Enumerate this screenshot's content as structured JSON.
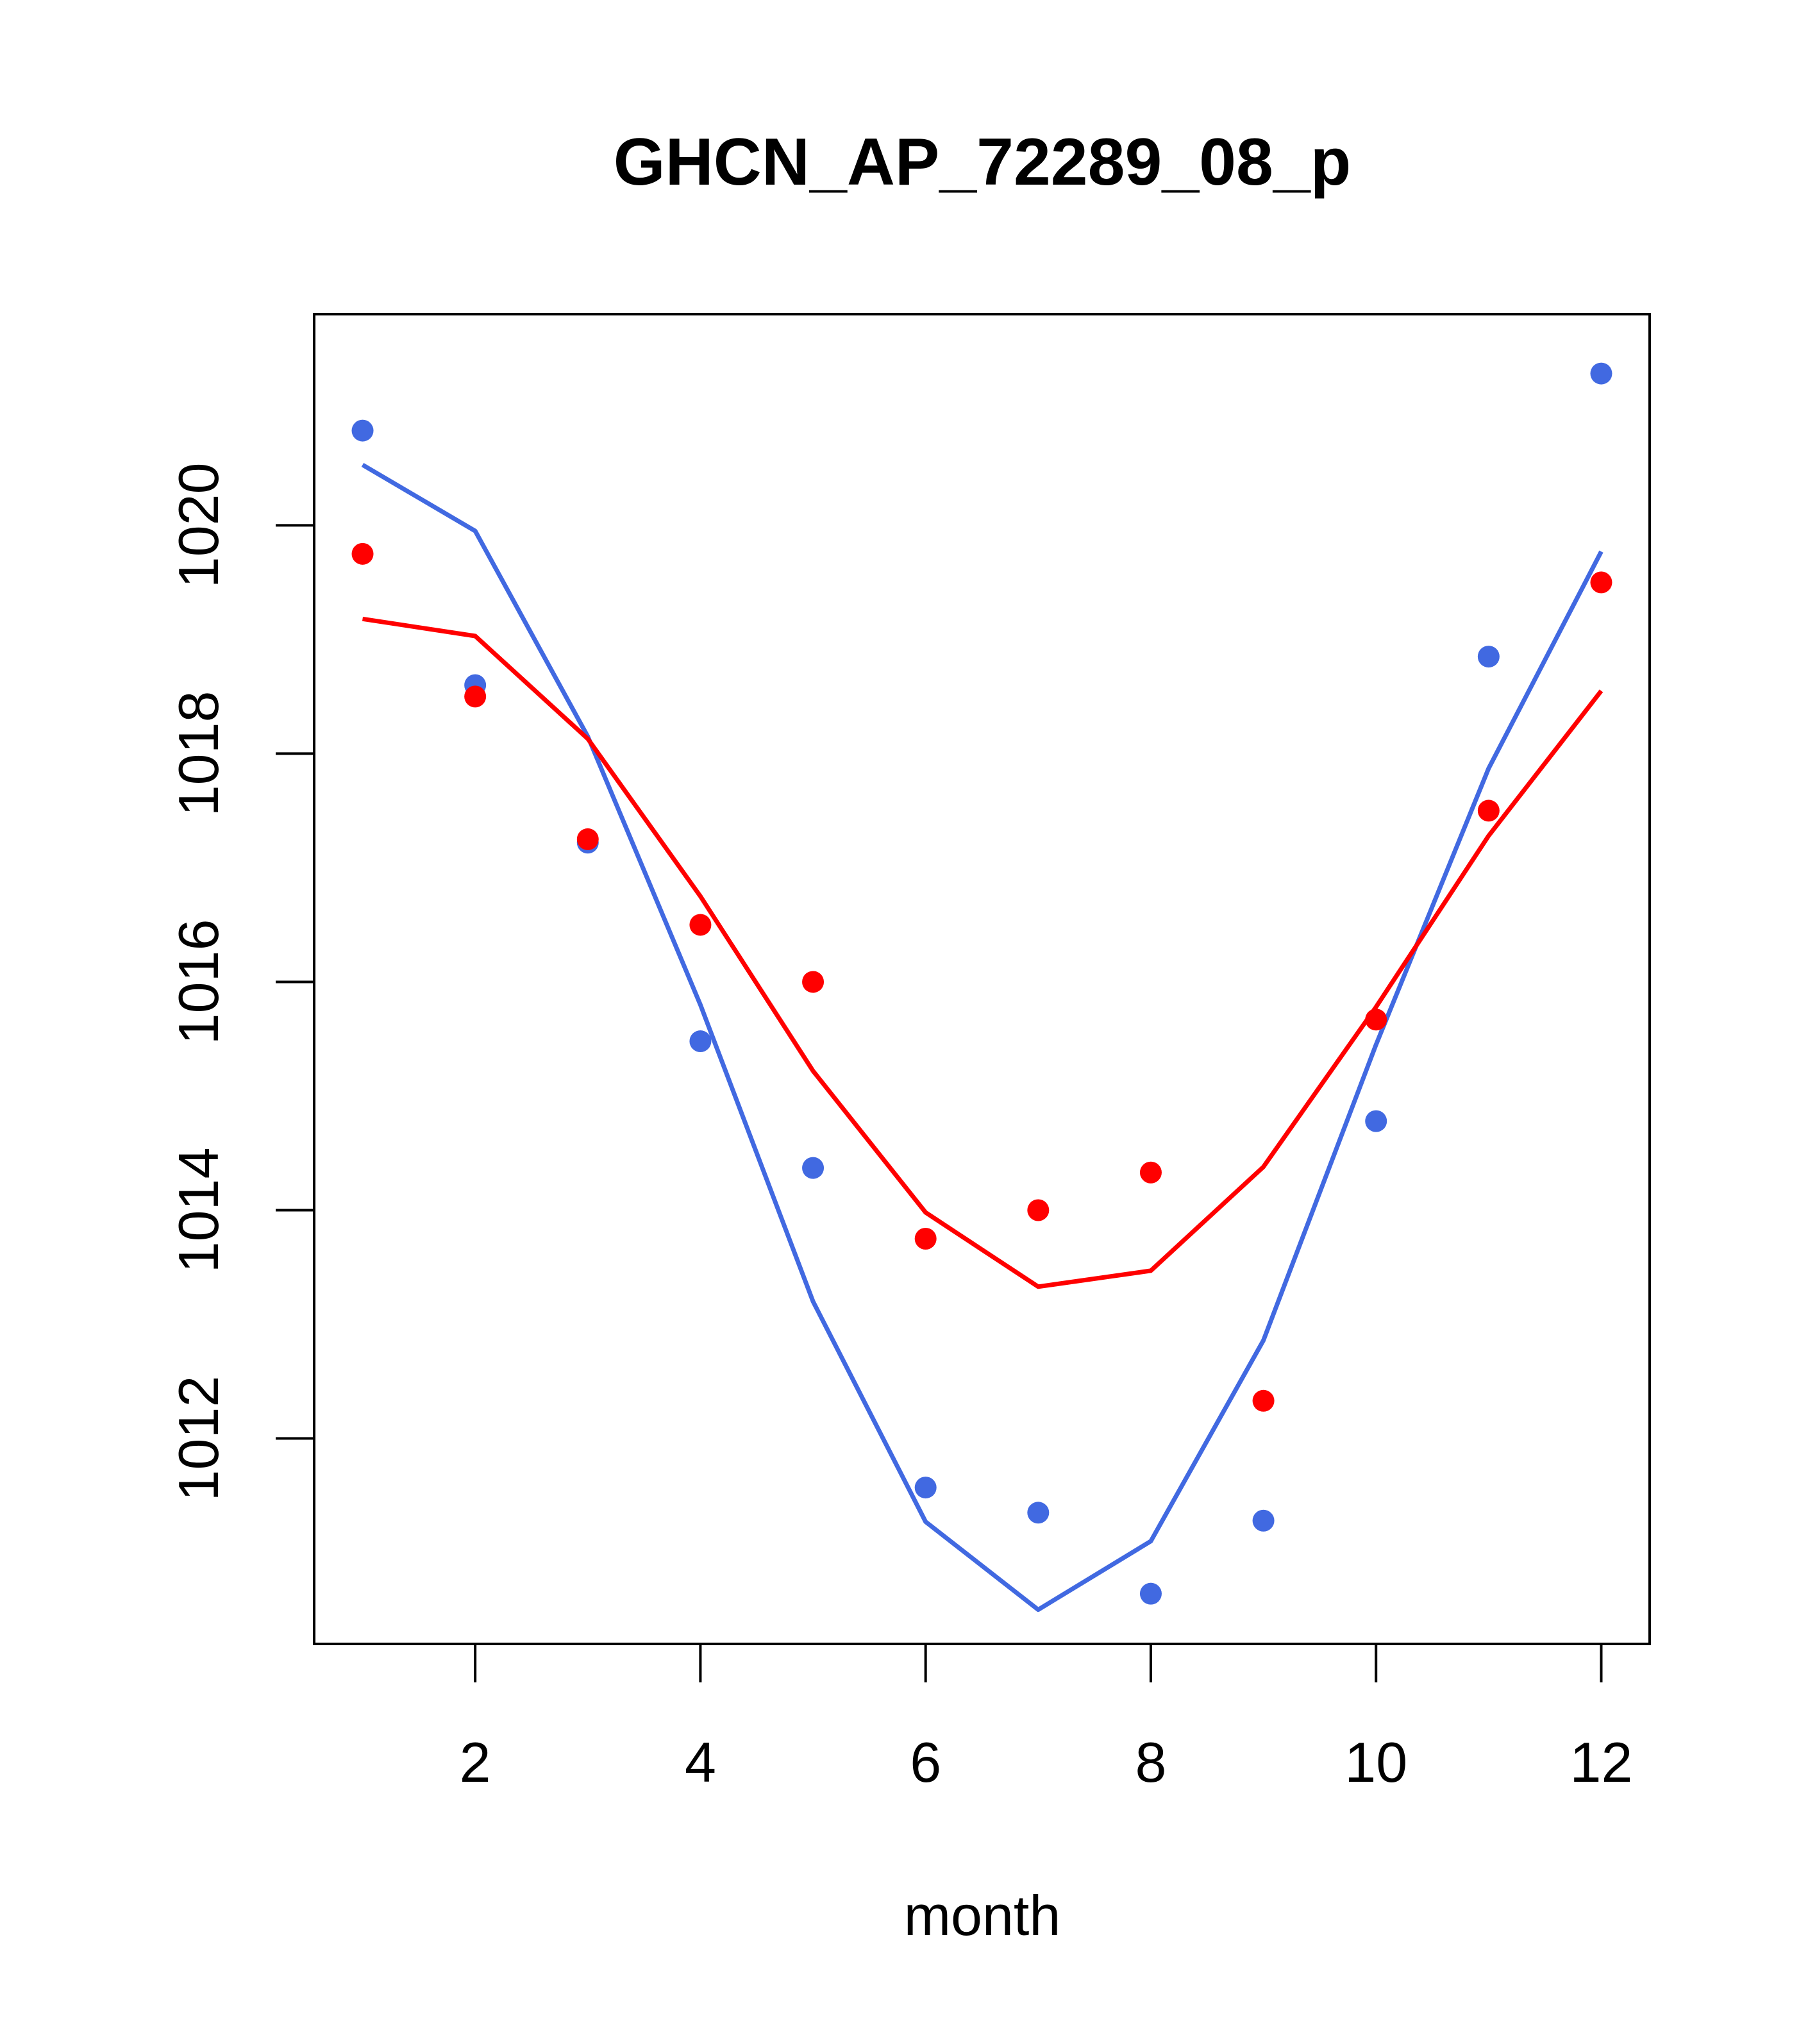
{
  "chart_data": {
    "type": "line",
    "title": "GHCN_AP_72289_08_p",
    "xlabel": "month",
    "ylabel": "",
    "xlim": [
      0.57,
      12.43
    ],
    "ylim": [
      1010.2,
      1021.85
    ],
    "x_ticks": [
      2,
      4,
      6,
      8,
      10,
      12
    ],
    "y_ticks": [
      1012,
      1014,
      1016,
      1018,
      1020
    ],
    "grid": false,
    "legend": "none",
    "series": [
      {
        "color": "#4169E1",
        "x": [
          1,
          2,
          3,
          4,
          5,
          6,
          7,
          8,
          9,
          10,
          11,
          12
        ],
        "points": [
          1020.83,
          1018.6,
          1017.22,
          1015.48,
          1014.37,
          1011.57,
          1011.35,
          1010.64,
          1011.28,
          1014.78,
          1018.85,
          1021.33
        ],
        "line": [
          1020.53,
          1019.95,
          1018.15,
          1015.8,
          1013.2,
          1011.27,
          1010.5,
          1011.1,
          1012.86,
          1015.45,
          1017.87,
          1019.77
        ]
      },
      {
        "color": "#FF0000",
        "x": [
          1,
          2,
          3,
          4,
          5,
          6,
          7,
          8,
          9,
          10,
          11,
          12
        ],
        "points": [
          1019.75,
          1018.5,
          1017.25,
          1016.5,
          1016.0,
          1013.75,
          1014.0,
          1014.33,
          1012.33,
          1015.67,
          1017.5,
          1019.5
        ],
        "line": [
          1019.18,
          1019.03,
          1018.13,
          1016.75,
          1015.22,
          1013.98,
          1013.33,
          1013.47,
          1014.38,
          1015.78,
          1017.28,
          1018.55
        ]
      }
    ]
  }
}
